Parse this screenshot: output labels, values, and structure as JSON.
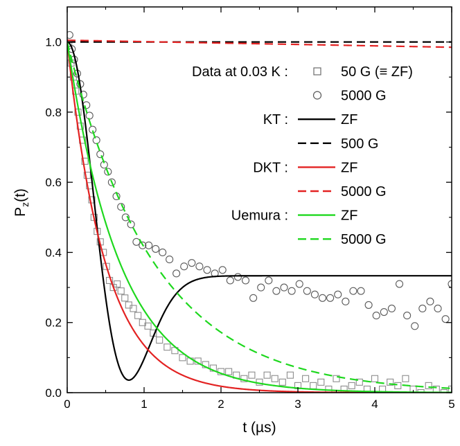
{
  "chart_data": {
    "type": "line",
    "xlabel": "t (µs)",
    "ylabel": "Pz(t)",
    "ylabel_main": "P",
    "ylabel_sub": "z",
    "ylabel_tail": "(t)",
    "xlim": [
      0,
      5
    ],
    "ylim": [
      0,
      1.1
    ],
    "xticks": [
      0,
      1,
      2,
      3,
      4,
      5
    ],
    "xtick_labels": [
      "0",
      "1",
      "2",
      "3",
      "4",
      "5"
    ],
    "yticks": [
      0.0,
      0.2,
      0.4,
      0.6,
      0.8,
      1.0
    ],
    "ytick_labels": [
      "0.0",
      "0.2",
      "0.4",
      "0.6",
      "0.8",
      "1.0"
    ],
    "grid": false,
    "legend": {
      "placement": "top-right",
      "data_heading": "Data at 0.03 K :",
      "data_entries": [
        {
          "marker": "square",
          "label": "50 G (≡ ZF)"
        },
        {
          "marker": "circle",
          "label": "5000 G"
        }
      ],
      "groups": [
        {
          "heading": "KT :",
          "color": "#000000",
          "entries": [
            {
              "style": "solid",
              "label": "ZF"
            },
            {
              "style": "dashed",
              "label": "500 G"
            }
          ]
        },
        {
          "heading": "DKT :",
          "color": "#e32222",
          "entries": [
            {
              "style": "solid",
              "label": "ZF"
            },
            {
              "style": "dashed",
              "label": "5000 G"
            }
          ]
        },
        {
          "heading": "Uemura :",
          "color": "#1ed81e",
          "entries": [
            {
              "style": "solid",
              "label": "ZF"
            },
            {
              "style": "dashed",
              "label": "5000 G"
            }
          ]
        }
      ]
    },
    "series": [
      {
        "name": "Data 50 G (≡ ZF)",
        "kind": "scatter",
        "marker": "square",
        "color": "#8c8c8c",
        "x": [
          0.02,
          0.05,
          0.08,
          0.11,
          0.14,
          0.17,
          0.2,
          0.23,
          0.26,
          0.29,
          0.32,
          0.35,
          0.39,
          0.43,
          0.47,
          0.51,
          0.55,
          0.6,
          0.65,
          0.7,
          0.75,
          0.8,
          0.86,
          0.92,
          0.98,
          1.05,
          1.12,
          1.2,
          1.3,
          1.4,
          1.5,
          1.6,
          1.7,
          1.8,
          1.9,
          2.0,
          2.1,
          2.2,
          2.3,
          2.4,
          2.5,
          2.6,
          2.7,
          2.8,
          2.9,
          3.0,
          3.1,
          3.2,
          3.3,
          3.4,
          3.5,
          3.6,
          3.7,
          3.8,
          3.9,
          4.0,
          4.1,
          4.2,
          4.3,
          4.4,
          4.5,
          4.6,
          4.7,
          4.8,
          4.9,
          5.0
        ],
        "y": [
          0.99,
          0.94,
          0.9,
          0.86,
          0.8,
          0.76,
          0.72,
          0.66,
          0.62,
          0.59,
          0.55,
          0.5,
          0.46,
          0.43,
          0.4,
          0.36,
          0.32,
          0.3,
          0.31,
          0.29,
          0.27,
          0.25,
          0.24,
          0.22,
          0.2,
          0.19,
          0.17,
          0.15,
          0.13,
          0.12,
          0.1,
          0.09,
          0.09,
          0.08,
          0.07,
          0.06,
          0.06,
          0.05,
          0.04,
          0.05,
          0.03,
          0.05,
          0.04,
          0.03,
          0.05,
          0.02,
          0.04,
          0.02,
          0.03,
          0.01,
          0.04,
          0.01,
          0.02,
          0.03,
          0.01,
          0.04,
          0.01,
          0.03,
          0.02,
          0.04,
          0.01,
          0.0,
          0.02,
          0.01,
          0.0,
          0.01
        ]
      },
      {
        "name": "Data 5000 G",
        "kind": "scatter",
        "marker": "circle",
        "color": "#5a5a5a",
        "x": [
          0.03,
          0.06,
          0.09,
          0.13,
          0.17,
          0.21,
          0.25,
          0.29,
          0.33,
          0.38,
          0.43,
          0.48,
          0.53,
          0.58,
          0.64,
          0.7,
          0.76,
          0.83,
          0.9,
          0.98,
          1.06,
          1.15,
          1.24,
          1.33,
          1.42,
          1.52,
          1.62,
          1.72,
          1.82,
          1.92,
          2.02,
          2.12,
          2.22,
          2.32,
          2.42,
          2.52,
          2.62,
          2.72,
          2.82,
          2.92,
          3.02,
          3.12,
          3.22,
          3.32,
          3.42,
          3.52,
          3.62,
          3.72,
          3.82,
          3.92,
          4.02,
          4.12,
          4.22,
          4.32,
          4.42,
          4.52,
          4.62,
          4.72,
          4.82,
          4.92,
          5.0
        ],
        "y": [
          1.02,
          0.98,
          0.95,
          0.91,
          0.88,
          0.85,
          0.82,
          0.79,
          0.75,
          0.72,
          0.68,
          0.65,
          0.63,
          0.6,
          0.56,
          0.53,
          0.5,
          0.48,
          0.43,
          0.42,
          0.42,
          0.41,
          0.4,
          0.38,
          0.34,
          0.36,
          0.37,
          0.36,
          0.35,
          0.34,
          0.35,
          0.32,
          0.33,
          0.32,
          0.27,
          0.3,
          0.32,
          0.29,
          0.3,
          0.29,
          0.31,
          0.29,
          0.28,
          0.27,
          0.27,
          0.28,
          0.26,
          0.29,
          0.29,
          0.25,
          0.22,
          0.23,
          0.24,
          0.31,
          0.22,
          0.19,
          0.24,
          0.26,
          0.24,
          0.21,
          0.31
        ]
      },
      {
        "name": "KT ZF",
        "kind": "line",
        "style": "solid",
        "color": "#000000",
        "function": "kt",
        "delta": 2.16,
        "until": 5.0
      },
      {
        "name": "KT 500 G",
        "kind": "line",
        "style": "dashed",
        "color": "#000000",
        "function": "const",
        "value": 1.0,
        "until": 5.0
      },
      {
        "name": "DKT ZF",
        "kind": "line",
        "style": "solid",
        "color": "#e32222",
        "function": "exp",
        "rate": 2.0,
        "until": 5.0
      },
      {
        "name": "DKT 5000 G",
        "kind": "line",
        "style": "dashed",
        "color": "#e32222",
        "function": "linear",
        "start": 1.005,
        "end": 0.985,
        "until": 5.0
      },
      {
        "name": "Uemura ZF",
        "kind": "line",
        "style": "solid",
        "color": "#1ed81e",
        "function": "exp",
        "rate": 1.45,
        "until": 5.0
      },
      {
        "name": "Uemura 5000 G",
        "kind": "line",
        "style": "dashed",
        "color": "#1ed81e",
        "function": "exp",
        "rate": 0.88,
        "until": 5.0
      }
    ]
  }
}
